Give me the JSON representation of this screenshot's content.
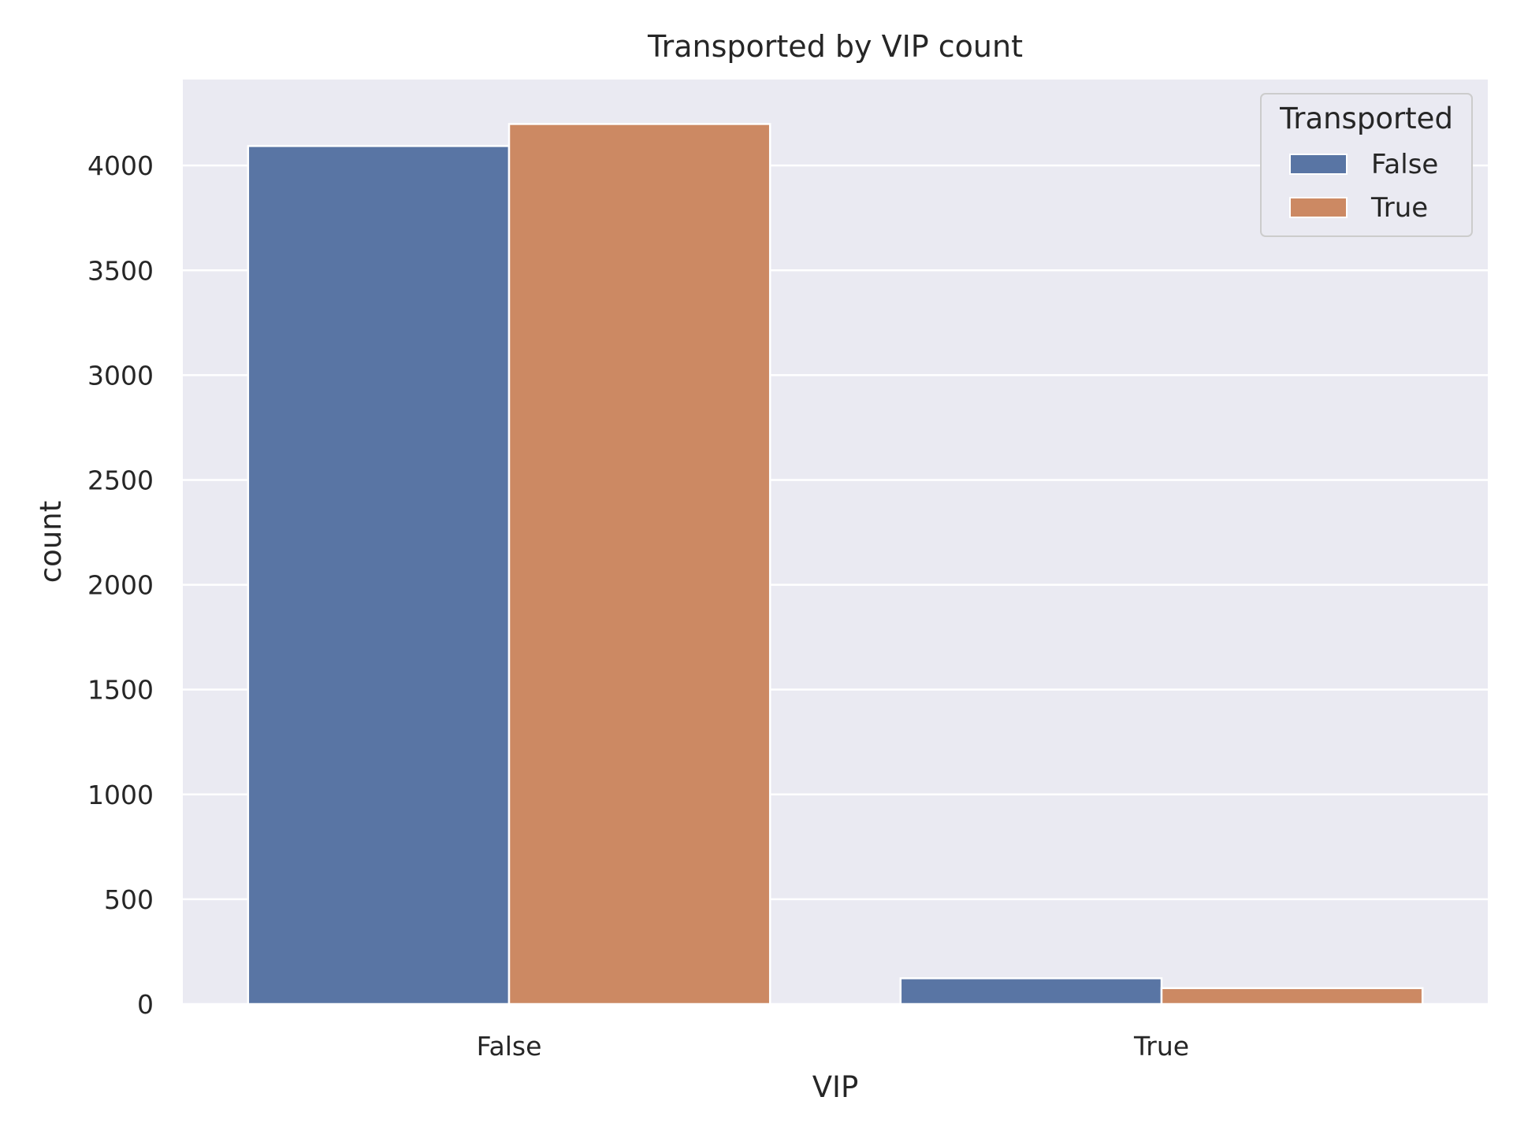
{
  "chart_data": {
    "type": "bar",
    "title": "Transported by VIP count",
    "xlabel": "VIP",
    "ylabel": "count",
    "categories": [
      "False",
      "True"
    ],
    "series": [
      {
        "name": "False",
        "color": "#5975a4",
        "values": [
          4093,
          123
        ]
      },
      {
        "name": "True",
        "color": "#cc8963",
        "values": [
          4198,
          76
        ]
      }
    ],
    "ylim": [
      0,
      4410
    ],
    "yticks": [
      0,
      500,
      1000,
      1500,
      2000,
      2500,
      3000,
      3500,
      4000
    ],
    "grid": true,
    "legend": {
      "title": "Transported",
      "placement": "top-right"
    },
    "background_color": "#eaeaf2"
  }
}
